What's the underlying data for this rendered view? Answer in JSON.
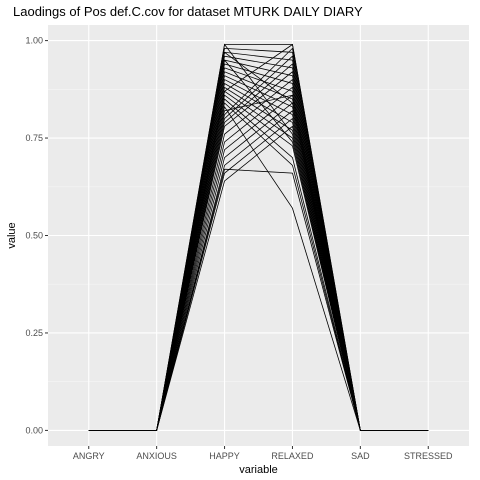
{
  "chart_data": {
    "type": "line",
    "title": "Laodings of Pos def.C.cov for dataset MTURK DAILY DIARY",
    "xlabel": "variable",
    "ylabel": "value",
    "categories": [
      "ANGRY",
      "ANXIOUS",
      "HAPPY",
      "RELAXED",
      "SAD",
      "STRESSED"
    ],
    "ylim": [
      -0.04,
      1.04
    ],
    "yticks": [
      0.0,
      0.25,
      0.5,
      0.75,
      1.0
    ],
    "ytick_labels": [
      "0.00",
      "0.25",
      "0.50",
      "0.75",
      "1.00"
    ],
    "grid": true,
    "legend": "none",
    "line_color": "#000000",
    "panel_color": "#ebebeb",
    "series": [
      {
        "values": [
          0,
          0,
          0.99,
          0.99,
          0,
          0
        ]
      },
      {
        "values": [
          0,
          0,
          0.98,
          0.97,
          0,
          0
        ]
      },
      {
        "values": [
          0,
          0,
          0.97,
          0.95,
          0,
          0
        ]
      },
      {
        "values": [
          0,
          0,
          0.96,
          0.93,
          0,
          0
        ]
      },
      {
        "values": [
          0,
          0,
          0.95,
          0.91,
          0,
          0
        ]
      },
      {
        "values": [
          0,
          0,
          0.94,
          0.89,
          0,
          0
        ]
      },
      {
        "values": [
          0,
          0,
          0.93,
          0.87,
          0,
          0
        ]
      },
      {
        "values": [
          0,
          0,
          0.92,
          0.85,
          0,
          0
        ]
      },
      {
        "values": [
          0,
          0,
          0.91,
          0.83,
          0,
          0
        ]
      },
      {
        "values": [
          0,
          0,
          0.9,
          0.81,
          0,
          0
        ]
      },
      {
        "values": [
          0,
          0,
          0.89,
          0.79,
          0,
          0
        ]
      },
      {
        "values": [
          0,
          0,
          0.88,
          0.77,
          0,
          0
        ]
      },
      {
        "values": [
          0,
          0,
          0.87,
          0.75,
          0,
          0
        ]
      },
      {
        "values": [
          0,
          0,
          0.86,
          0.73,
          0,
          0
        ]
      },
      {
        "values": [
          0,
          0,
          0.85,
          0.7,
          0,
          0
        ]
      },
      {
        "values": [
          0,
          0,
          0.84,
          0.68,
          0,
          0
        ]
      },
      {
        "values": [
          0,
          0,
          0.83,
          0.57,
          0,
          0
        ]
      },
      {
        "values": [
          0,
          0,
          0.81,
          0.98,
          0,
          0
        ]
      },
      {
        "values": [
          0,
          0,
          0.8,
          0.96,
          0,
          0
        ]
      },
      {
        "values": [
          0,
          0,
          0.79,
          0.94,
          0,
          0
        ]
      },
      {
        "values": [
          0,
          0,
          0.78,
          0.92,
          0,
          0
        ]
      },
      {
        "values": [
          0,
          0,
          0.76,
          0.9,
          0,
          0
        ]
      },
      {
        "values": [
          0,
          0,
          0.74,
          0.88,
          0,
          0
        ]
      },
      {
        "values": [
          0,
          0,
          0.72,
          0.86,
          0,
          0
        ]
      },
      {
        "values": [
          0,
          0,
          0.7,
          0.84,
          0,
          0
        ]
      },
      {
        "values": [
          0,
          0,
          0.68,
          0.82,
          0,
          0
        ]
      },
      {
        "values": [
          0,
          0,
          0.66,
          0.8,
          0,
          0
        ]
      },
      {
        "values": [
          0,
          0,
          0.64,
          0.78,
          0,
          0
        ]
      },
      {
        "values": [
          0,
          0,
          0.67,
          0.66,
          0,
          0
        ]
      },
      {
        "values": [
          0,
          0,
          0.99,
          0.76,
          0,
          0
        ]
      },
      {
        "values": [
          0,
          0,
          0.97,
          0.84,
          0,
          0
        ]
      },
      {
        "values": [
          0,
          0,
          0.95,
          0.74,
          0,
          0
        ]
      },
      {
        "values": [
          0,
          0,
          0.87,
          0.99,
          0,
          0
        ]
      },
      {
        "values": [
          0,
          0,
          0.82,
          0.86,
          0,
          0
        ]
      }
    ]
  }
}
